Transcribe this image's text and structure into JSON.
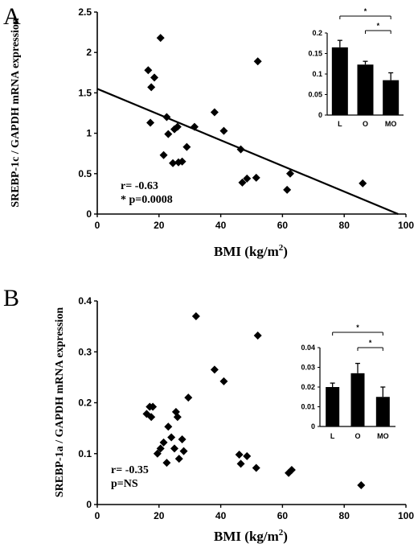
{
  "chart_data": [
    {
      "type": "scatter",
      "panel": "A",
      "xlabel": "BMI (kg/m²)",
      "xlabel_base": "BMI (kg/m",
      "xlabel_sup": "2",
      "xlabel_close": ")",
      "ylabel": "SREBP-1c / GAPDH mRNA expression",
      "xlim": [
        0,
        100
      ],
      "ylim": [
        0,
        2.5
      ],
      "x_ticks": [
        0,
        20,
        40,
        60,
        80,
        100
      ],
      "y_ticks": [
        0,
        0.5,
        1,
        1.5,
        2,
        2.5
      ],
      "y_tick_labels": [
        "0",
        "0.5",
        "1",
        "1.5",
        "2",
        "2.5"
      ],
      "points": [
        [
          16.5,
          1.78
        ],
        [
          17.2,
          1.13
        ],
        [
          17.5,
          1.57
        ],
        [
          18.5,
          1.69
        ],
        [
          20.5,
          2.18
        ],
        [
          21.5,
          0.73
        ],
        [
          22.5,
          1.2
        ],
        [
          23.0,
          0.99
        ],
        [
          24.5,
          0.63
        ],
        [
          25.0,
          1.05
        ],
        [
          26.0,
          1.08
        ],
        [
          26.3,
          0.64
        ],
        [
          27.5,
          0.65
        ],
        [
          29.0,
          0.83
        ],
        [
          31.5,
          1.08
        ],
        [
          38.0,
          1.26
        ],
        [
          41.0,
          1.03
        ],
        [
          46.5,
          0.8
        ],
        [
          47.0,
          0.39
        ],
        [
          48.5,
          0.44
        ],
        [
          51.5,
          0.45
        ],
        [
          52.0,
          1.89
        ],
        [
          61.5,
          0.3
        ],
        [
          62.5,
          0.5
        ],
        [
          86.0,
          0.38
        ]
      ],
      "regression": {
        "slope": -0.0159,
        "intercept": 1.55
      },
      "stat_r": "r= -0.63",
      "stat_p": "* p=0.0008",
      "inset": {
        "type": "bar",
        "categories": [
          "L",
          "O",
          "MO"
        ],
        "values": [
          0.165,
          0.123,
          0.085
        ],
        "errors": [
          0.017,
          0.008,
          0.018
        ],
        "ylim": [
          0,
          0.2
        ],
        "y_ticks": [
          0,
          0.05,
          0.1,
          0.15,
          0.2
        ],
        "y_tick_labels": [
          "0",
          "0.05",
          "0.1",
          "0.15",
          "0.2"
        ],
        "significance": [
          {
            "from": "L",
            "to": "MO",
            "label": "*"
          },
          {
            "from": "O",
            "to": "MO",
            "label": "*"
          }
        ]
      }
    },
    {
      "type": "scatter",
      "panel": "B",
      "xlabel": "BMI (kg/m²)",
      "xlabel_base": "BMI (kg/m",
      "xlabel_sup": "2",
      "xlabel_close": ")",
      "ylabel": "SREBP-1a / GAPDH mRNA expression",
      "xlim": [
        0,
        100
      ],
      "ylim": [
        0,
        0.4
      ],
      "x_ticks": [
        0,
        20,
        40,
        60,
        80,
        100
      ],
      "y_ticks": [
        0,
        0.1,
        0.2,
        0.3,
        0.4
      ],
      "y_tick_labels": [
        "0",
        "0.1",
        "0.2",
        "0.3",
        "0.4"
      ],
      "points": [
        [
          16.0,
          0.178
        ],
        [
          17.0,
          0.192
        ],
        [
          17.5,
          0.172
        ],
        [
          18.0,
          0.192
        ],
        [
          19.5,
          0.1
        ],
        [
          20.5,
          0.11
        ],
        [
          21.5,
          0.122
        ],
        [
          22.5,
          0.082
        ],
        [
          23.0,
          0.153
        ],
        [
          24.0,
          0.132
        ],
        [
          25.0,
          0.11
        ],
        [
          25.5,
          0.182
        ],
        [
          26.0,
          0.172
        ],
        [
          26.5,
          0.09
        ],
        [
          27.5,
          0.128
        ],
        [
          28.0,
          0.105
        ],
        [
          29.5,
          0.21
        ],
        [
          32.0,
          0.37
        ],
        [
          38.0,
          0.265
        ],
        [
          41.0,
          0.242
        ],
        [
          46.0,
          0.098
        ],
        [
          46.5,
          0.08
        ],
        [
          48.5,
          0.095
        ],
        [
          51.5,
          0.072
        ],
        [
          52.0,
          0.332
        ],
        [
          62.0,
          0.062
        ],
        [
          63.0,
          0.068
        ],
        [
          85.5,
          0.038
        ]
      ],
      "stat_r": "r= -0.35",
      "stat_p": "p=NS",
      "inset": {
        "type": "bar",
        "categories": [
          "L",
          "O",
          "MO"
        ],
        "values": [
          0.02,
          0.027,
          0.015
        ],
        "errors": [
          0.002,
          0.005,
          0.005
        ],
        "ylim": [
          0,
          0.04
        ],
        "y_ticks": [
          0,
          0.01,
          0.02,
          0.03,
          0.04
        ],
        "y_tick_labels": [
          "0",
          "0.01",
          "0.02",
          "0.03",
          "0.04"
        ],
        "significance": [
          {
            "from": "L",
            "to": "MO",
            "label": "*"
          },
          {
            "from": "O",
            "to": "MO",
            "label": "*"
          }
        ]
      }
    }
  ]
}
